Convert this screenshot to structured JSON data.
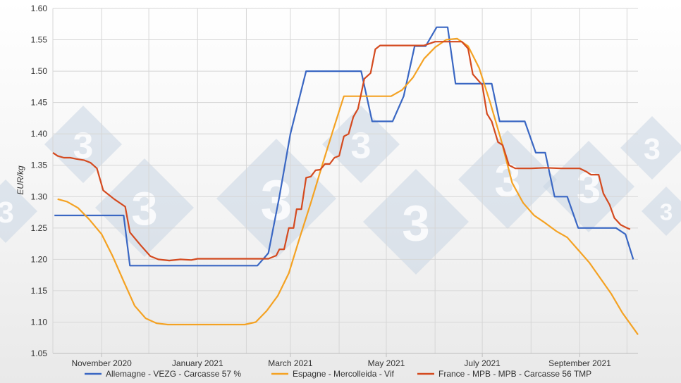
{
  "chart_data": {
    "type": "line",
    "title": "",
    "xlabel": "",
    "ylabel": "EUR/kg",
    "ylim": [
      1.05,
      1.6
    ],
    "yticks": [
      "1.05",
      "1.10",
      "1.15",
      "1.20",
      "1.25",
      "1.30",
      "1.35",
      "1.40",
      "1.45",
      "1.50",
      "1.55",
      "1.60"
    ],
    "xlim": [
      "2020-10-01",
      "2021-10-08"
    ],
    "xtick_labels": [
      {
        "date": "2020-11-01",
        "label": "November 2020"
      },
      {
        "date": "2021-01-01",
        "label": "January 2021"
      },
      {
        "date": "2021-03-01",
        "label": "March 2021"
      },
      {
        "date": "2021-05-01",
        "label": "May 2021"
      },
      {
        "date": "2021-07-01",
        "label": "July 2021"
      },
      {
        "date": "2021-09-01",
        "label": "September 2021"
      }
    ],
    "grid": true,
    "legend_position": "bottom",
    "series": [
      {
        "name": "Allemagne - VEZG - Carcasse 57 %",
        "color": "#3a67c3",
        "points": [
          [
            "2020-10-02",
            1.27
          ],
          [
            "2020-11-08",
            1.27
          ],
          [
            "2020-11-15",
            1.27
          ],
          [
            "2020-11-19",
            1.19
          ],
          [
            "2020-12-01",
            1.19
          ],
          [
            "2021-01-01",
            1.19
          ],
          [
            "2021-02-01",
            1.19
          ],
          [
            "2021-02-08",
            1.19
          ],
          [
            "2021-02-15",
            1.21
          ],
          [
            "2021-02-22",
            1.3
          ],
          [
            "2021-03-01",
            1.4
          ],
          [
            "2021-03-08",
            1.47
          ],
          [
            "2021-03-11",
            1.5
          ],
          [
            "2021-04-01",
            1.5
          ],
          [
            "2021-04-15",
            1.5
          ],
          [
            "2021-04-22",
            1.42
          ],
          [
            "2021-05-05",
            1.42
          ],
          [
            "2021-05-12",
            1.46
          ],
          [
            "2021-05-19",
            1.54
          ],
          [
            "2021-05-26",
            1.54
          ],
          [
            "2021-06-02",
            1.57
          ],
          [
            "2021-06-09",
            1.57
          ],
          [
            "2021-06-14",
            1.48
          ],
          [
            "2021-06-30",
            1.48
          ],
          [
            "2021-07-07",
            1.48
          ],
          [
            "2021-07-12",
            1.42
          ],
          [
            "2021-07-28",
            1.42
          ],
          [
            "2021-08-04",
            1.37
          ],
          [
            "2021-08-10",
            1.37
          ],
          [
            "2021-08-16",
            1.3
          ],
          [
            "2021-08-24",
            1.3
          ],
          [
            "2021-08-31",
            1.25
          ],
          [
            "2021-09-24",
            1.25
          ],
          [
            "2021-09-30",
            1.24
          ],
          [
            "2021-10-05",
            1.2
          ]
        ]
      },
      {
        "name": "Espagne - Mercolleida - Vif",
        "color": "#f4a223",
        "points": [
          [
            "2020-10-04",
            1.296
          ],
          [
            "2020-10-10",
            1.292
          ],
          [
            "2020-10-17",
            1.282
          ],
          [
            "2020-10-24",
            1.264
          ],
          [
            "2020-11-01",
            1.24
          ],
          [
            "2020-11-08",
            1.205
          ],
          [
            "2020-11-15",
            1.165
          ],
          [
            "2020-11-22",
            1.126
          ],
          [
            "2020-11-29",
            1.106
          ],
          [
            "2020-12-06",
            1.098
          ],
          [
            "2020-12-13",
            1.096
          ],
          [
            "2020-12-31",
            1.096
          ],
          [
            "2021-01-31",
            1.096
          ],
          [
            "2021-02-07",
            1.1
          ],
          [
            "2021-02-14",
            1.118
          ],
          [
            "2021-02-21",
            1.142
          ],
          [
            "2021-02-28",
            1.178
          ],
          [
            "2021-03-07",
            1.235
          ],
          [
            "2021-03-14",
            1.29
          ],
          [
            "2021-03-21",
            1.348
          ],
          [
            "2021-03-28",
            1.405
          ],
          [
            "2021-04-04",
            1.46
          ],
          [
            "2021-04-18",
            1.46
          ],
          [
            "2021-05-04",
            1.46
          ],
          [
            "2021-05-11",
            1.47
          ],
          [
            "2021-05-18",
            1.49
          ],
          [
            "2021-05-25",
            1.52
          ],
          [
            "2021-06-01",
            1.538
          ],
          [
            "2021-06-08",
            1.55
          ],
          [
            "2021-06-15",
            1.552
          ],
          [
            "2021-06-22",
            1.54
          ],
          [
            "2021-06-29",
            1.505
          ],
          [
            "2021-07-06",
            1.45
          ],
          [
            "2021-07-13",
            1.39
          ],
          [
            "2021-07-20",
            1.322
          ],
          [
            "2021-07-27",
            1.29
          ],
          [
            "2021-08-03",
            1.27
          ],
          [
            "2021-08-10",
            1.258
          ],
          [
            "2021-08-17",
            1.245
          ],
          [
            "2021-08-24",
            1.235
          ],
          [
            "2021-08-31",
            1.215
          ],
          [
            "2021-09-07",
            1.195
          ],
          [
            "2021-09-14",
            1.17
          ],
          [
            "2021-09-21",
            1.145
          ],
          [
            "2021-09-28",
            1.115
          ],
          [
            "2021-10-08",
            1.08
          ]
        ]
      },
      {
        "name": "France - MPB - MPB - Carcasse 56 TMP",
        "color": "#d44a1f",
        "points": [
          [
            "2020-10-01",
            1.37
          ],
          [
            "2020-10-04",
            1.365
          ],
          [
            "2020-10-08",
            1.362
          ],
          [
            "2020-10-12",
            1.362
          ],
          [
            "2020-10-16",
            1.36
          ],
          [
            "2020-10-21",
            1.358
          ],
          [
            "2020-10-25",
            1.354
          ],
          [
            "2020-10-29",
            1.345
          ],
          [
            "2020-11-02",
            1.31
          ],
          [
            "2020-11-09",
            1.296
          ],
          [
            "2020-11-16",
            1.284
          ],
          [
            "2020-11-19",
            1.243
          ],
          [
            "2020-11-26",
            1.222
          ],
          [
            "2020-12-02",
            1.205
          ],
          [
            "2020-12-07",
            1.2
          ],
          [
            "2020-12-14",
            1.198
          ],
          [
            "2020-12-21",
            1.2
          ],
          [
            "2020-12-28",
            1.199
          ],
          [
            "2021-01-01",
            1.201
          ],
          [
            "2021-01-15",
            1.201
          ],
          [
            "2021-02-01",
            1.201
          ],
          [
            "2021-02-15",
            1.201
          ],
          [
            "2021-02-20",
            1.206
          ],
          [
            "2021-02-22",
            1.216
          ],
          [
            "2021-02-25",
            1.216
          ],
          [
            "2021-02-28",
            1.25
          ],
          [
            "2021-03-03",
            1.25
          ],
          [
            "2021-03-05",
            1.28
          ],
          [
            "2021-03-08",
            1.28
          ],
          [
            "2021-03-11",
            1.33
          ],
          [
            "2021-03-14",
            1.332
          ],
          [
            "2021-03-17",
            1.342
          ],
          [
            "2021-03-20",
            1.343
          ],
          [
            "2021-03-23",
            1.352
          ],
          [
            "2021-03-26",
            1.352
          ],
          [
            "2021-03-29",
            1.362
          ],
          [
            "2021-04-01",
            1.365
          ],
          [
            "2021-04-04",
            1.396
          ],
          [
            "2021-04-07",
            1.4
          ],
          [
            "2021-04-10",
            1.427
          ],
          [
            "2021-04-13",
            1.44
          ],
          [
            "2021-04-17",
            1.488
          ],
          [
            "2021-04-21",
            1.497
          ],
          [
            "2021-04-24",
            1.535
          ],
          [
            "2021-04-27",
            1.541
          ],
          [
            "2021-05-03",
            1.541
          ],
          [
            "2021-05-11",
            1.541
          ],
          [
            "2021-05-18",
            1.541
          ],
          [
            "2021-05-25",
            1.541
          ],
          [
            "2021-06-01",
            1.547
          ],
          [
            "2021-06-08",
            1.547
          ],
          [
            "2021-06-18",
            1.547
          ],
          [
            "2021-06-22",
            1.536
          ],
          [
            "2021-06-25",
            1.495
          ],
          [
            "2021-07-01",
            1.478
          ],
          [
            "2021-07-04",
            1.432
          ],
          [
            "2021-07-07",
            1.42
          ],
          [
            "2021-07-11",
            1.387
          ],
          [
            "2021-07-14",
            1.382
          ],
          [
            "2021-07-18",
            1.35
          ],
          [
            "2021-07-22",
            1.345
          ],
          [
            "2021-08-01",
            1.345
          ],
          [
            "2021-08-10",
            1.346
          ],
          [
            "2021-08-20",
            1.345
          ],
          [
            "2021-09-01",
            1.345
          ],
          [
            "2021-09-05",
            1.34
          ],
          [
            "2021-09-08",
            1.335
          ],
          [
            "2021-09-13",
            1.335
          ],
          [
            "2021-09-16",
            1.305
          ],
          [
            "2021-09-20",
            1.287
          ],
          [
            "2021-09-23",
            1.266
          ],
          [
            "2021-09-27",
            1.255
          ],
          [
            "2021-10-01",
            1.25
          ],
          [
            "2021-10-03",
            1.248
          ]
        ]
      }
    ]
  },
  "watermark": {
    "text": "3",
    "color": "#c9d5e3"
  }
}
